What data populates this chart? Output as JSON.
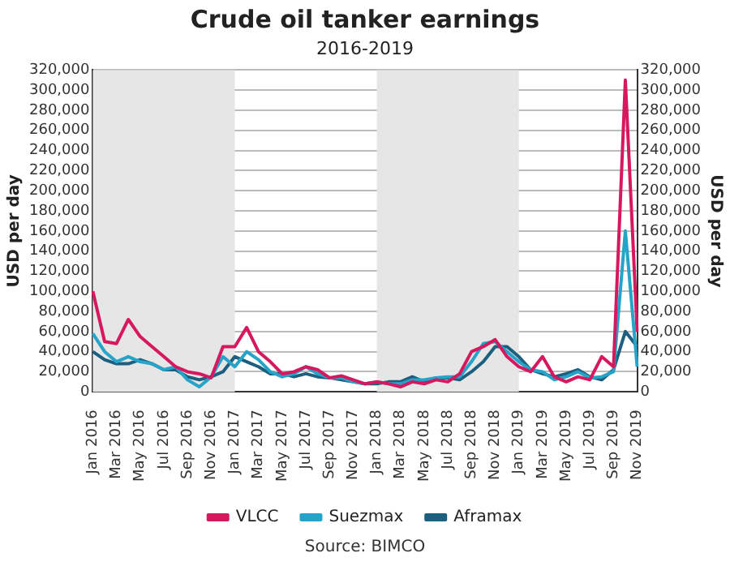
{
  "chart_data": {
    "type": "line",
    "title": "Crude oil tanker earnings",
    "subtitle": "2016-2019",
    "ylabel": "USD per day",
    "y2label": "USD per day",
    "categories": [
      "Jan 2016",
      null,
      "Mar 2016",
      null,
      "May 2016",
      null,
      "Jul 2016",
      null,
      "Sep 2016",
      null,
      "Nov 2016",
      null,
      "Jan 2017",
      null,
      "Mar 2017",
      null,
      "May 2017",
      null,
      "Jul 2017",
      null,
      "Sep 2017",
      null,
      "Nov 2017",
      null,
      "Jan 2018",
      null,
      "Mar 2018",
      null,
      "May 2018",
      null,
      "Jul 2018",
      null,
      "Sep 2018",
      null,
      "Nov 2018",
      null,
      "Jan 2019",
      null,
      "Mar 2019",
      null,
      "May 2019",
      null,
      "Jul 2019",
      null,
      "Sep 2019",
      null,
      "Nov 2019"
    ],
    "series": [
      {
        "name": "VLCC",
        "color": "#d6195e",
        "values": [
          100000,
          50000,
          48000,
          72000,
          55000,
          45000,
          35000,
          25000,
          20000,
          18000,
          14000,
          45000,
          45000,
          64000,
          40000,
          30000,
          18000,
          20000,
          25000,
          22000,
          14000,
          16000,
          12000,
          8000,
          10000,
          8000,
          5000,
          10000,
          8000,
          12000,
          10000,
          18000,
          40000,
          45000,
          52000,
          35000,
          25000,
          20000,
          35000,
          15000,
          10000,
          15000,
          12000,
          35000,
          25000,
          310000,
          60000
        ]
      },
      {
        "name": "Suezmax",
        "color": "#26a3c9",
        "values": [
          58000,
          40000,
          30000,
          35000,
          30000,
          28000,
          22000,
          25000,
          12000,
          5000,
          15000,
          35000,
          25000,
          40000,
          32000,
          20000,
          15000,
          18000,
          25000,
          18000,
          14000,
          14000,
          10000,
          8000,
          10000,
          8000,
          8000,
          12000,
          12000,
          14000,
          15000,
          15000,
          30000,
          48000,
          50000,
          40000,
          30000,
          22000,
          20000,
          12000,
          15000,
          20000,
          14000,
          15000,
          20000,
          160000,
          25000
        ]
      },
      {
        "name": "Aframax",
        "color": "#1d5f7f",
        "values": [
          40000,
          32000,
          28000,
          28000,
          32000,
          28000,
          22000,
          22000,
          15000,
          12000,
          15000,
          20000,
          35000,
          30000,
          25000,
          18000,
          18000,
          15000,
          18000,
          15000,
          14000,
          12000,
          10000,
          8000,
          8000,
          10000,
          10000,
          15000,
          10000,
          14000,
          14000,
          12000,
          20000,
          30000,
          45000,
          45000,
          35000,
          22000,
          18000,
          15000,
          18000,
          22000,
          15000,
          12000,
          22000,
          60000,
          45000
        ]
      }
    ],
    "ylim": [
      0,
      320000
    ],
    "yticks": [
      0,
      {
        "value": 20000,
        "label": "20,000"
      },
      {
        "value": 40000,
        "label": "40,000"
      },
      {
        "value": 60000,
        "label": "60,000"
      },
      {
        "value": 80000,
        "label": "80,000"
      },
      {
        "value": 100000,
        "label": "100,000"
      },
      {
        "value": 120000,
        "label": "120,000"
      },
      {
        "value": 140000,
        "label": "140,000"
      },
      {
        "value": 160000,
        "label": "160,000"
      },
      {
        "value": 180000,
        "label": "180,000"
      },
      {
        "value": 200000,
        "label": "200,000"
      },
      {
        "value": 220000,
        "label": "220,000"
      },
      {
        "value": 240000,
        "label": "240,000"
      },
      {
        "value": 260000,
        "label": "260,000"
      },
      {
        "value": 280000,
        "label": "280,000"
      },
      {
        "value": 300000,
        "label": "300,000"
      },
      {
        "value": 320000,
        "label": "320,000"
      }
    ],
    "y2lim": [
      0,
      320000
    ],
    "y2ticks": [
      0,
      {
        "value": 20000,
        "label": "20,000"
      },
      {
        "value": 40000,
        "label": "40,000"
      },
      {
        "value": 60000,
        "label": "60,000"
      },
      {
        "value": 80000,
        "label": "80,000"
      },
      {
        "value": 100000,
        "label": "100,000"
      },
      {
        "value": 120000,
        "label": "120,000"
      },
      {
        "value": 140000,
        "label": "140,000"
      },
      {
        "value": 160000,
        "label": "160,000"
      },
      {
        "value": 180000,
        "label": "180,000"
      },
      {
        "value": 200000,
        "label": "200,000"
      },
      {
        "value": 220000,
        "label": "220,000"
      },
      {
        "value": 240000,
        "label": "240,000"
      },
      {
        "value": 260000,
        "label": "260,000"
      },
      {
        "value": 280000,
        "label": "280,000"
      },
      {
        "value": 300000,
        "label": "300,000"
      },
      {
        "value": 320000,
        "label": "320,000"
      }
    ],
    "bands": [
      {
        "axis": "x",
        "from": "Jan 2016",
        "to": "Jan 2017",
        "color": "#e6e6e6"
      },
      {
        "axis": "x",
        "from": "Jan 2018",
        "to": "Jan 2019",
        "color": "#e6e6e6"
      }
    ],
    "grid": "y",
    "legend": "bottom",
    "marker": "none",
    "line_style": "solid",
    "annotations": [
      "Source: BIMCO"
    ]
  }
}
